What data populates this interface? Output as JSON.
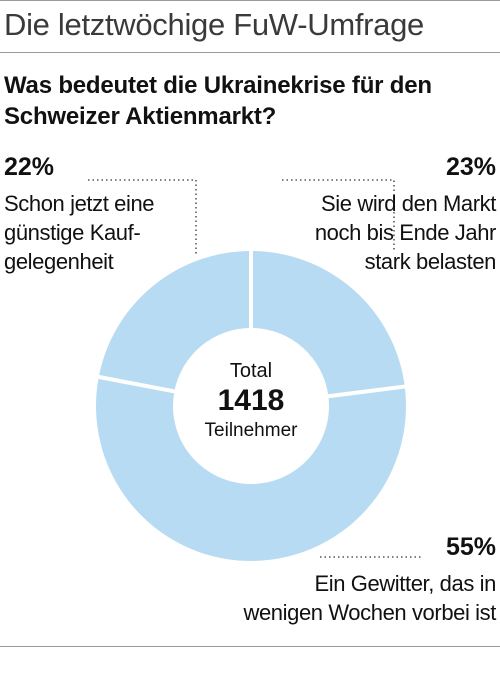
{
  "header": {
    "kicker": "Die letztwöchige FuW-Umfrage",
    "title": "Was bedeutet die Ukrainekrise für den Schweizer Aktienmarkt?"
  },
  "chart_data": {
    "type": "pie",
    "donut": true,
    "total_label": "Total",
    "total_value": "1418",
    "total_unit": "Teilnehmer",
    "slice_color": "#b7dbf2",
    "separator_color": "#ffffff",
    "slices": [
      {
        "percent": 23,
        "percent_label": "23%",
        "label_lines": [
          "Sie wird den Markt",
          "noch bis Ende Jahr",
          "stark belasten"
        ]
      },
      {
        "percent": 55,
        "percent_label": "55%",
        "label_lines": [
          "Ein Gewitter, das in",
          "wenigen Wochen vorbei ist"
        ]
      },
      {
        "percent": 22,
        "percent_label": "22%",
        "label_lines": [
          "Schon jetzt eine",
          "günstige Kauf-",
          "gelegenheit"
        ]
      }
    ]
  }
}
